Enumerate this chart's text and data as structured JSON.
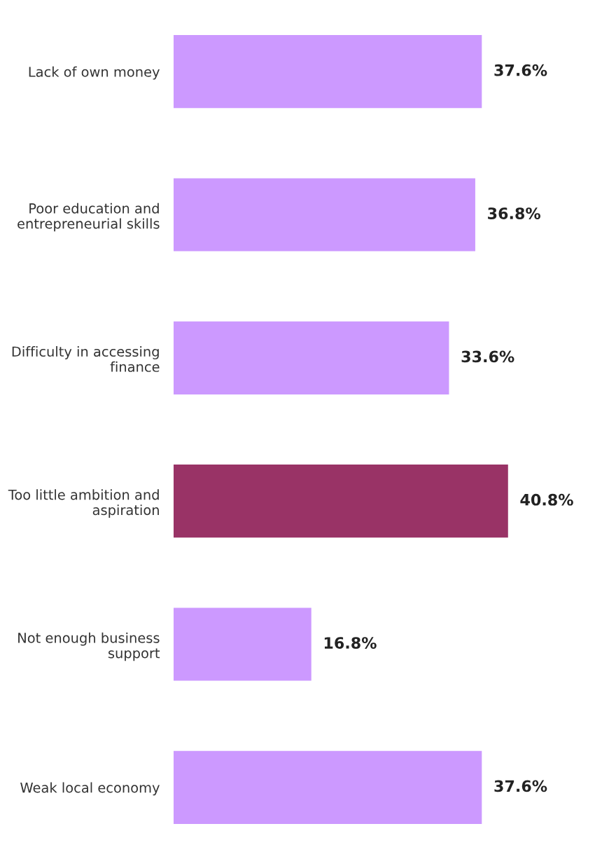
{
  "chart_data": {
    "type": "bar",
    "orientation": "horizontal",
    "categories": [
      "Lack of own money",
      "Poor education and\nentrepreneurial skills",
      "Difficulty in accessing\nfinance",
      "Too little ambition and\naspiration",
      "Not enough business\nsupport",
      "Weak local economy"
    ],
    "values": [
      37.6,
      36.8,
      33.6,
      40.8,
      16.8,
      37.6
    ],
    "colors": [
      "#cc99ff",
      "#cc99ff",
      "#cc99ff",
      "#993366",
      "#cc99ff",
      "#cc99ff"
    ],
    "value_labels": [
      "37.6%",
      "36.8%",
      "33.6%",
      "40.8%",
      "16.8%",
      "37.6%"
    ],
    "grid": false,
    "legend": false
  }
}
